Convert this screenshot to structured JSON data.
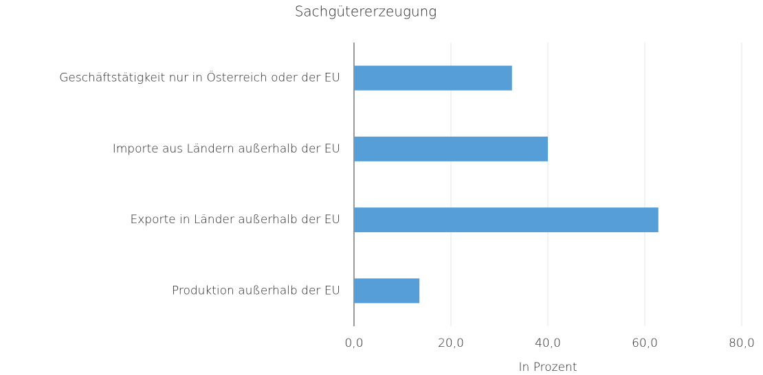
{
  "chart_data": {
    "type": "bar",
    "orientation": "horizontal",
    "title": "Sachgütererzeugung",
    "categories": [
      "Geschäftstätigkeit nur in Österreich oder der EU",
      "Importe aus Ländern außerhalb der EU",
      "Exporte in Länder außerhalb der EU",
      "Produktion außerhalb der EU"
    ],
    "values": [
      32.6,
      40.0,
      62.8,
      13.5
    ],
    "color": "#569ed7",
    "xlabel": "In Prozent",
    "xlim": [
      0,
      80
    ],
    "xticks": [
      {
        "value": 0,
        "label": "0,0"
      },
      {
        "value": 20,
        "label": "20,0"
      },
      {
        "value": 40,
        "label": "40,0"
      },
      {
        "value": 60,
        "label": "60,0"
      },
      {
        "value": 80,
        "label": "80,0"
      }
    ],
    "grid": true
  }
}
